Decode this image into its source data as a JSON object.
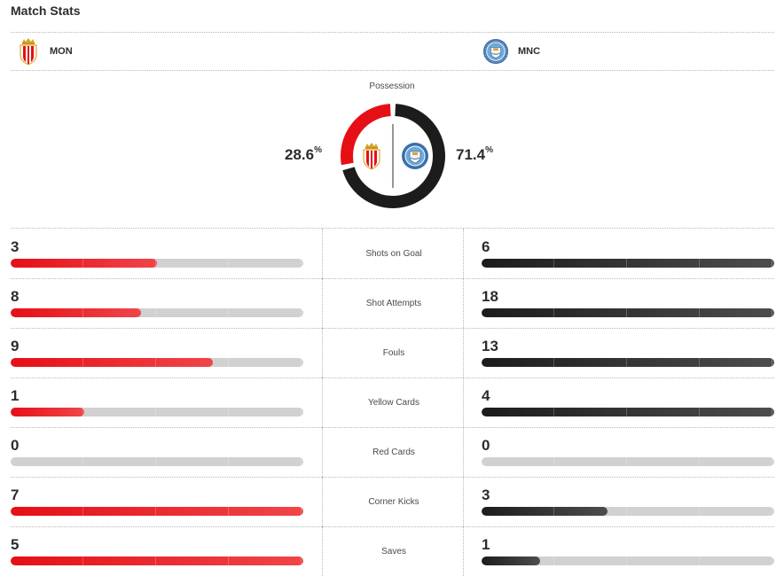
{
  "header": {
    "title": "Match Stats"
  },
  "teams": {
    "home": {
      "abbr": "MON",
      "color": "#e60f16"
    },
    "away": {
      "abbr": "MNC",
      "color": "#1c1c1d"
    }
  },
  "possession": {
    "label": "Possession",
    "home_pct": "28.6",
    "away_pct": "71.4",
    "unit": "%",
    "home_value": 28.6,
    "away_value": 71.4
  },
  "stats": [
    {
      "label": "Shots on Goal",
      "home": "3",
      "away": "6",
      "home_fill": 0.5,
      "away_fill": 1.0
    },
    {
      "label": "Shot Attempts",
      "home": "8",
      "away": "18",
      "home_fill": 0.444,
      "away_fill": 1.0
    },
    {
      "label": "Fouls",
      "home": "9",
      "away": "13",
      "home_fill": 0.692,
      "away_fill": 1.0
    },
    {
      "label": "Yellow Cards",
      "home": "1",
      "away": "4",
      "home_fill": 0.25,
      "away_fill": 1.0
    },
    {
      "label": "Red Cards",
      "home": "0",
      "away": "0",
      "home_fill": 0,
      "away_fill": 0
    },
    {
      "label": "Corner Kicks",
      "home": "7",
      "away": "3",
      "home_fill": 1.0,
      "away_fill": 0.429
    },
    {
      "label": "Saves",
      "home": "5",
      "away": "1",
      "home_fill": 1.0,
      "away_fill": 0.2
    }
  ]
}
